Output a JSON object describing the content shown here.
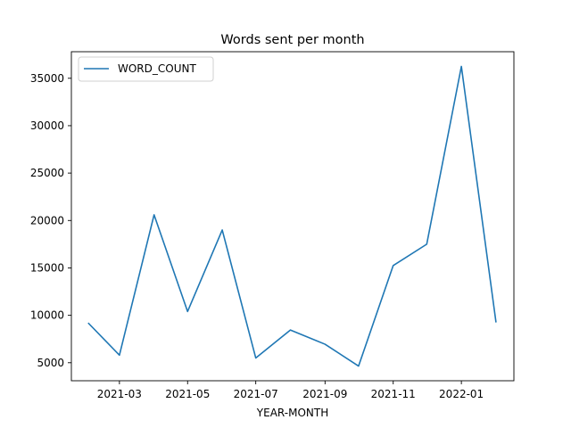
{
  "chart_data": {
    "type": "line",
    "title": "Words sent per month",
    "xlabel": "YEAR-MONTH",
    "ylabel": "",
    "x": [
      "2021-02",
      "2021-03",
      "2021-04",
      "2021-05",
      "2021-06",
      "2021-07",
      "2021-08",
      "2021-09",
      "2021-10",
      "2021-11",
      "2021-12",
      "2022-01",
      "2022-02"
    ],
    "series": [
      {
        "name": "WORD_COUNT",
        "color": "#1f77b4",
        "values": [
          9200,
          5800,
          20600,
          10400,
          19000,
          5500,
          8450,
          6950,
          4650,
          15250,
          17500,
          36250,
          9250
        ]
      }
    ],
    "xticks": [
      "2021-03",
      "2021-05",
      "2021-07",
      "2021-09",
      "2021-11",
      "2022-01"
    ],
    "yticks": [
      5000,
      10000,
      15000,
      20000,
      25000,
      30000,
      35000
    ],
    "xlim": [
      "2021-01-17",
      "2022-02-17"
    ],
    "ylim": [
      3100,
      37800
    ],
    "grid": false,
    "legend_position": "top-left"
  }
}
